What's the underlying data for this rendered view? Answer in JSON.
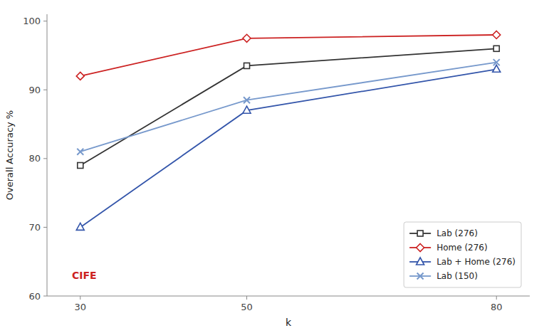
{
  "chart_data": {
    "type": "line",
    "x": [
      30,
      50,
      80
    ],
    "series": [
      {
        "name": "Lab (276)",
        "color": "#333333",
        "marker": "square",
        "values": [
          79.0,
          93.5,
          96.0
        ]
      },
      {
        "name": "Home (276)",
        "color": "#cc2222",
        "marker": "diamond",
        "values": [
          92.0,
          97.5,
          98.0
        ]
      },
      {
        "name": "Lab + Home (276)",
        "color": "#3355aa",
        "marker": "triangle",
        "values": [
          70.0,
          87.0,
          93.0
        ]
      },
      {
        "name": "Lab (150)",
        "color": "#7799cc",
        "marker": "x",
        "values": [
          81.0,
          88.5,
          94.0
        ]
      }
    ],
    "xlabel": "k",
    "ylabel": "Overall Accuracy %",
    "xlim": [
      26,
      84
    ],
    "xticks": [
      30,
      50,
      80
    ],
    "ylim": [
      60,
      101
    ],
    "yticks": [
      60,
      70,
      80,
      90,
      100
    ],
    "annotations": [
      {
        "text": "CIFE",
        "x": 29,
        "y": 62.5,
        "color": "#cc2222"
      }
    ],
    "legend": "lower right",
    "grid": false
  }
}
